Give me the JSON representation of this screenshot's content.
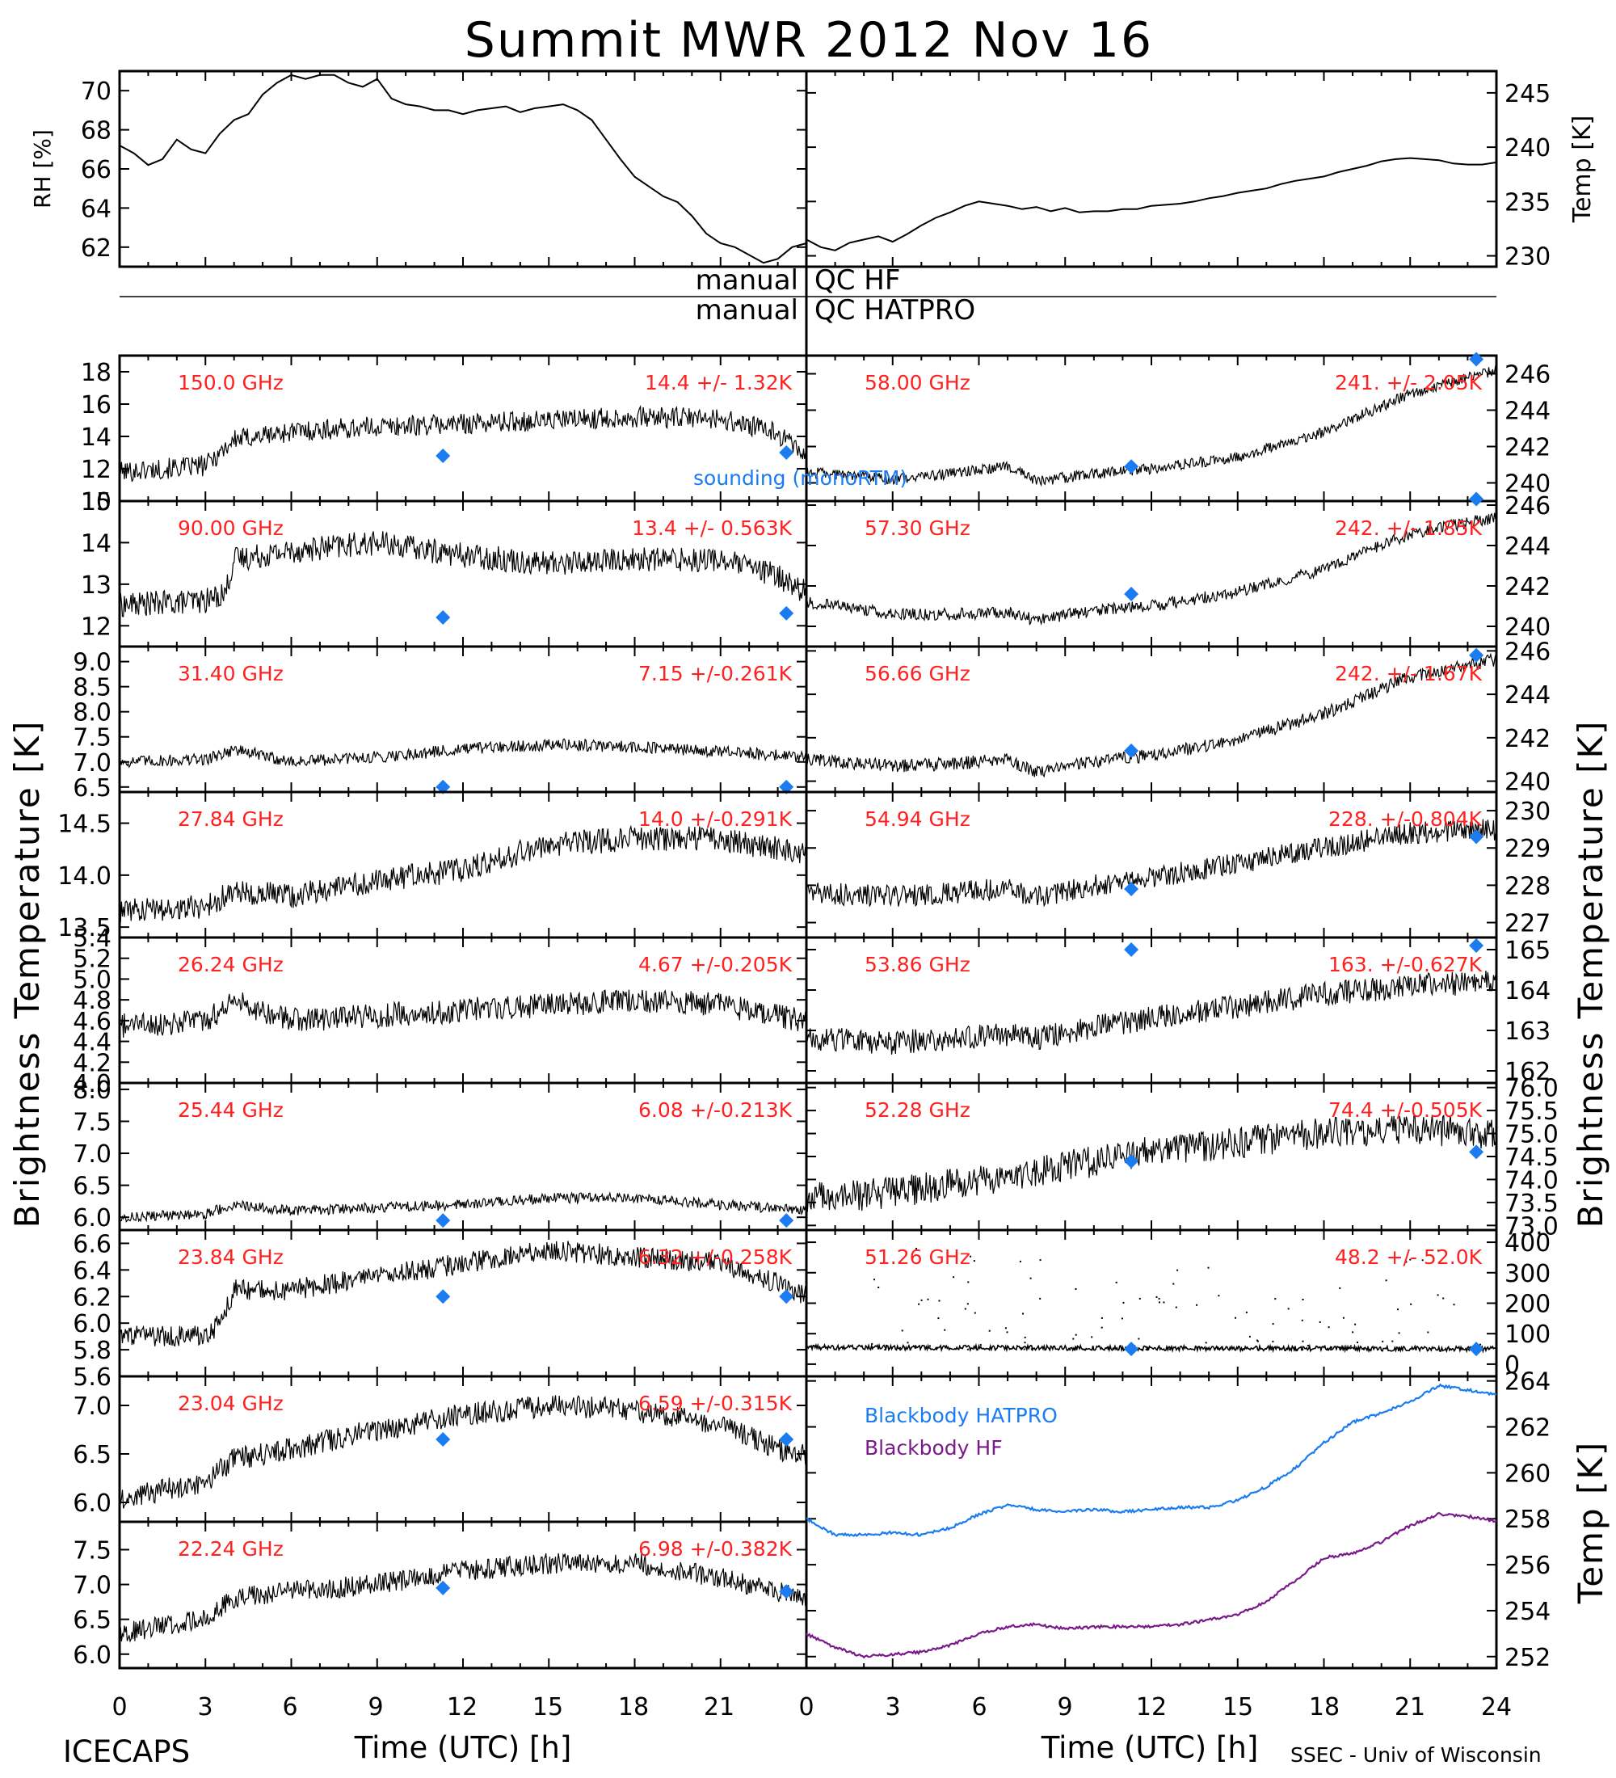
{
  "title": "Summit MWR 2012 Nov 16",
  "footer_left": "ICECAPS",
  "footer_right": "SSEC - Univ of Wisconsin",
  "xlabel": "Time (UTC) [h]",
  "x_ticks": [
    "0",
    "3",
    "6",
    "9",
    "12",
    "15",
    "18",
    "21",
    "24"
  ],
  "ylabel_left": "Brightness Temperature [K]",
  "ylabel_right": "Brightness Temperature [K]",
  "qc_lines": [
    {
      "left": "manual",
      "right": "QC HF"
    },
    {
      "left": "manual",
      "right": "QC HATPRO"
    }
  ],
  "sounding_label": "sounding (monoRTM)",
  "colors": {
    "channel_text": "#ff2020",
    "sounding_marker": "#1a7cf0",
    "bb_hatpro": "#1a7cf0",
    "bb_hf": "#7a1a8a"
  },
  "chart_data": [
    {
      "type": "line",
      "panel": "rh",
      "ylabel": "RH [%]",
      "ylim": [
        61,
        71
      ],
      "yticks": [
        62,
        64,
        66,
        68,
        70
      ],
      "x": [
        0,
        0.5,
        1,
        1.5,
        2,
        2.5,
        3,
        3.5,
        4,
        4.5,
        5,
        5.5,
        6,
        6.5,
        7,
        7.5,
        8,
        8.5,
        9,
        9.5,
        10,
        10.5,
        11,
        11.5,
        12,
        12.5,
        13,
        13.5,
        14,
        14.5,
        15,
        15.5,
        16,
        16.5,
        17,
        17.5,
        18,
        18.5,
        19,
        19.5,
        20,
        20.5,
        21,
        21.5,
        22,
        22.5,
        23,
        23.5,
        24
      ],
      "values": [
        67.2,
        66.8,
        66.2,
        66.5,
        67.5,
        67.0,
        66.8,
        67.8,
        68.5,
        68.8,
        69.8,
        70.4,
        70.8,
        70.6,
        70.8,
        70.8,
        70.4,
        70.2,
        70.6,
        69.6,
        69.3,
        69.2,
        69.0,
        69.0,
        68.8,
        69.0,
        69.1,
        69.2,
        68.9,
        69.1,
        69.2,
        69.3,
        69.0,
        68.5,
        67.5,
        66.5,
        65.6,
        65.1,
        64.6,
        64.3,
        63.6,
        62.7,
        62.2,
        62.0,
        61.6,
        61.2,
        61.4,
        62.0,
        62.2
      ]
    },
    {
      "type": "line",
      "panel": "temp",
      "ylabel": "Temp [K]",
      "ylim": [
        229,
        247
      ],
      "yticks": [
        230,
        235,
        240,
        245
      ],
      "x": [
        0,
        0.5,
        1,
        1.5,
        2,
        2.5,
        3,
        3.5,
        4,
        4.5,
        5,
        5.5,
        6,
        6.5,
        7,
        7.5,
        8,
        8.5,
        9,
        9.5,
        10,
        10.5,
        11,
        11.5,
        12,
        12.5,
        13,
        13.5,
        14,
        14.5,
        15,
        15.5,
        16,
        16.5,
        17,
        17.5,
        18,
        18.5,
        19,
        19.5,
        20,
        20.5,
        21,
        21.5,
        22,
        22.5,
        23,
        23.5,
        24
      ],
      "values": [
        231.5,
        230.8,
        230.5,
        231.2,
        231.5,
        231.8,
        231.3,
        232.0,
        232.8,
        233.5,
        234.0,
        234.6,
        235.0,
        234.8,
        234.6,
        234.3,
        234.5,
        234.1,
        234.4,
        234.0,
        234.1,
        234.1,
        234.3,
        234.3,
        234.6,
        234.7,
        234.8,
        235.0,
        235.3,
        235.5,
        235.8,
        236.0,
        236.2,
        236.6,
        236.9,
        237.1,
        237.3,
        237.7,
        238.0,
        238.3,
        238.7,
        238.9,
        239.0,
        238.9,
        238.8,
        238.5,
        238.4,
        238.4,
        238.6
      ]
    },
    {
      "type": "line",
      "panel": "left-1",
      "channel": "150.0 GHz",
      "stat": "14.4 +/- 1.32K",
      "ylim": [
        10,
        19
      ],
      "yticks": [
        10,
        12,
        14,
        16,
        18
      ],
      "x": [
        0,
        3,
        4,
        6,
        9,
        12,
        15,
        18,
        21,
        23,
        24
      ],
      "values": [
        11.8,
        12.2,
        13.8,
        14.3,
        14.6,
        14.8,
        15.0,
        15.2,
        15.1,
        14.2,
        12.8
      ],
      "noise": 0.65,
      "sounding": [
        [
          11.3,
          12.8
        ],
        [
          23.3,
          13.0
        ]
      ]
    },
    {
      "type": "line",
      "panel": "left-2",
      "channel": "90.00 GHz",
      "stat": "13.4 +/- 0.563K",
      "ylim": [
        11.5,
        15
      ],
      "yticks": [
        12,
        13,
        14,
        15
      ],
      "x": [
        0,
        3,
        3.7,
        4,
        6,
        9,
        12,
        15,
        18,
        21,
        23,
        24
      ],
      "values": [
        12.5,
        12.6,
        12.8,
        13.6,
        13.8,
        14.0,
        13.7,
        13.5,
        13.6,
        13.6,
        13.2,
        12.8
      ],
      "noise": 0.3,
      "sounding": [
        [
          11.3,
          12.2
        ],
        [
          23.3,
          12.3
        ]
      ]
    },
    {
      "type": "line",
      "panel": "left-3",
      "channel": "31.40 GHz",
      "stat": "7.15 +/-0.261K",
      "ylim": [
        6.4,
        9.3
      ],
      "yticks": [
        6.5,
        7.0,
        7.5,
        8.0,
        8.5,
        9.0
      ],
      "x": [
        0,
        3,
        4,
        6,
        9,
        12,
        15,
        18,
        21,
        24
      ],
      "values": [
        7.0,
        7.05,
        7.25,
        7.0,
        7.1,
        7.25,
        7.35,
        7.3,
        7.2,
        7.1
      ],
      "noise": 0.12,
      "sounding": [
        [
          11.3,
          6.5
        ],
        [
          23.3,
          6.5
        ]
      ]
    },
    {
      "type": "line",
      "panel": "left-4",
      "channel": "27.84 GHz",
      "stat": "14.0 +/-0.291K",
      "ylim": [
        13.4,
        14.8
      ],
      "yticks": [
        13.5,
        14.0,
        14.5
      ],
      "x": [
        0,
        3,
        4,
        6,
        9,
        12,
        15,
        18,
        21,
        24
      ],
      "values": [
        13.65,
        13.7,
        13.85,
        13.8,
        13.95,
        14.05,
        14.3,
        14.35,
        14.35,
        14.2
      ],
      "noise": 0.12,
      "sounding": []
    },
    {
      "type": "line",
      "panel": "left-5",
      "channel": "26.24 GHz",
      "stat": "4.67 +/-0.205K",
      "ylim": [
        4.0,
        5.4
      ],
      "yticks": [
        4.0,
        4.2,
        4.4,
        4.6,
        4.8,
        5.0,
        5.2,
        5.4
      ],
      "x": [
        0,
        3,
        4,
        6,
        9,
        12,
        15,
        18,
        21,
        24
      ],
      "values": [
        4.55,
        4.6,
        4.8,
        4.6,
        4.65,
        4.7,
        4.75,
        4.8,
        4.75,
        4.6
      ],
      "noise": 0.12,
      "sounding": []
    },
    {
      "type": "line",
      "panel": "left-6",
      "channel": "25.44 GHz",
      "stat": "6.08 +/-0.213K",
      "ylim": [
        5.8,
        8.1
      ],
      "yticks": [
        6.0,
        6.5,
        7.0,
        7.5,
        8.0
      ],
      "x": [
        0,
        3,
        4,
        6,
        9,
        12,
        15,
        18,
        21,
        24
      ],
      "values": [
        6.0,
        6.05,
        6.2,
        6.1,
        6.15,
        6.2,
        6.3,
        6.3,
        6.2,
        6.1
      ],
      "noise": 0.08,
      "sounding": [
        [
          11.3,
          5.95
        ],
        [
          23.3,
          5.95
        ]
      ]
    },
    {
      "type": "line",
      "panel": "left-7",
      "channel": "23.84 GHz",
      "stat": "6.32 +/-0.258K",
      "ylim": [
        5.6,
        6.7
      ],
      "yticks": [
        5.6,
        5.8,
        6.0,
        6.2,
        6.4,
        6.6
      ],
      "x": [
        0,
        3,
        3.5,
        4,
        6,
        9,
        12,
        15,
        18,
        21,
        23,
        24
      ],
      "values": [
        5.9,
        5.9,
        6.0,
        6.25,
        6.25,
        6.35,
        6.45,
        6.55,
        6.5,
        6.45,
        6.3,
        6.2
      ],
      "noise": 0.08,
      "sounding": [
        [
          11.3,
          6.2
        ],
        [
          23.3,
          6.2
        ]
      ]
    },
    {
      "type": "line",
      "panel": "left-8",
      "channel": "23.04 GHz",
      "stat": "6.59 +/-0.315K",
      "ylim": [
        5.8,
        7.3
      ],
      "yticks": [
        6.0,
        6.5,
        7.0
      ],
      "x": [
        0,
        3,
        4,
        6,
        9,
        12,
        15,
        18,
        21,
        23,
        24
      ],
      "values": [
        6.05,
        6.2,
        6.45,
        6.55,
        6.75,
        6.9,
        7.0,
        6.95,
        6.8,
        6.55,
        6.5
      ],
      "noise": 0.12,
      "sounding": [
        [
          11.3,
          6.65
        ],
        [
          23.3,
          6.65
        ]
      ]
    },
    {
      "type": "line",
      "panel": "left-9",
      "channel": "22.24 GHz",
      "stat": "6.98 +/-0.382K",
      "ylim": [
        5.8,
        7.9
      ],
      "yticks": [
        6.0,
        6.5,
        7.0,
        7.5
      ],
      "x": [
        0,
        3,
        4,
        6,
        9,
        12,
        15,
        18,
        21,
        23,
        24
      ],
      "values": [
        6.3,
        6.5,
        6.8,
        6.9,
        7.0,
        7.2,
        7.3,
        7.3,
        7.1,
        6.9,
        6.8
      ],
      "noise": 0.15,
      "sounding": [
        [
          11.3,
          6.95
        ],
        [
          23.3,
          6.9
        ]
      ]
    },
    {
      "type": "line",
      "panel": "right-1",
      "channel": "58.00 GHz",
      "stat": "241. +/- 2.05K",
      "ylim": [
        239,
        247
      ],
      "yticks": [
        240,
        242,
        244,
        246
      ],
      "x": [
        0,
        3,
        5,
        7,
        8,
        10,
        12,
        15,
        18,
        21,
        24
      ],
      "values": [
        240.6,
        240.2,
        240.5,
        240.9,
        240.1,
        240.5,
        240.8,
        241.4,
        242.8,
        244.9,
        246.2
      ],
      "noise": 0.3,
      "sounding": [
        [
          11.3,
          240.9
        ],
        [
          23.3,
          246.8
        ]
      ]
    },
    {
      "type": "line",
      "panel": "right-2",
      "channel": "57.30 GHz",
      "stat": "242. +/- 1.85K",
      "ylim": [
        239,
        246.2
      ],
      "yticks": [
        240,
        242,
        244,
        246
      ],
      "x": [
        0,
        3,
        5,
        7,
        8,
        10,
        12,
        15,
        18,
        21,
        24
      ],
      "values": [
        241.2,
        240.6,
        240.6,
        240.7,
        240.3,
        240.8,
        241.0,
        241.7,
        242.8,
        244.6,
        245.4
      ],
      "noise": 0.3,
      "sounding": [
        [
          11.3,
          241.6
        ],
        [
          23.3,
          246.3
        ]
      ]
    },
    {
      "type": "line",
      "panel": "right-3",
      "channel": "56.66 GHz",
      "stat": "242. +/- 1.67K",
      "ylim": [
        239.5,
        246.2
      ],
      "yticks": [
        240,
        242,
        244,
        246
      ],
      "x": [
        0,
        3,
        5,
        7,
        8,
        10,
        12,
        15,
        18,
        21,
        24
      ],
      "values": [
        241.0,
        240.7,
        240.8,
        241.0,
        240.4,
        240.9,
        241.2,
        241.9,
        243.1,
        244.8,
        245.6
      ],
      "noise": 0.3,
      "sounding": [
        [
          11.3,
          241.4
        ],
        [
          23.3,
          245.8
        ]
      ]
    },
    {
      "type": "line",
      "panel": "right-4",
      "channel": "54.94 GHz",
      "stat": "228. +/-0.804K",
      "ylim": [
        226.6,
        230.5
      ],
      "yticks": [
        227,
        228,
        229,
        230
      ],
      "x": [
        0,
        3,
        5,
        7,
        8,
        10,
        12,
        15,
        18,
        21,
        24
      ],
      "values": [
        227.8,
        227.7,
        227.8,
        227.9,
        227.7,
        228.0,
        228.2,
        228.6,
        229.0,
        229.4,
        229.5
      ],
      "noise": 0.3,
      "sounding": [
        [
          11.3,
          227.9
        ],
        [
          23.3,
          229.3
        ]
      ]
    },
    {
      "type": "line",
      "panel": "right-5",
      "channel": "53.86 GHz",
      "stat": "163. +/-0.627K",
      "ylim": [
        161.7,
        165.3
      ],
      "yticks": [
        162,
        163,
        164,
        165
      ],
      "x": [
        0,
        3,
        5,
        7,
        8,
        10,
        12,
        15,
        18,
        21,
        24
      ],
      "values": [
        162.8,
        162.7,
        162.8,
        162.9,
        162.8,
        163.1,
        163.3,
        163.6,
        163.9,
        164.1,
        164.2
      ],
      "noise": 0.3,
      "sounding": [
        [
          11.3,
          165.0
        ],
        [
          23.3,
          165.1
        ]
      ]
    },
    {
      "type": "line",
      "panel": "right-6",
      "channel": "52.28 GHz",
      "stat": "74.4 +/-0.505K",
      "ylim": [
        72.9,
        76.1
      ],
      "yticks": [
        73.0,
        73.5,
        74.0,
        74.5,
        75.0,
        75.5,
        76.0
      ],
      "x": [
        0,
        3,
        5,
        7,
        8,
        10,
        12,
        15,
        18,
        21,
        24
      ],
      "values": [
        73.6,
        73.7,
        73.9,
        74.0,
        74.2,
        74.4,
        74.6,
        74.8,
        75.0,
        75.1,
        75.0
      ],
      "noise": 0.35,
      "sounding": [
        [
          11.3,
          74.4
        ],
        [
          23.3,
          74.6
        ]
      ]
    },
    {
      "type": "scatter",
      "panel": "right-7",
      "channel": "51.26 GHz",
      "stat": "48.2 +/- 52.0K",
      "ylim": [
        -40,
        440
      ],
      "yticks": [
        0,
        100,
        200,
        300,
        400
      ],
      "x": [
        0,
        24
      ],
      "values": [
        55,
        50
      ],
      "noise": 8,
      "sounding": [
        [
          11.3,
          50
        ],
        [
          23.3,
          50
        ]
      ]
    },
    {
      "type": "line",
      "panel": "blackbody",
      "ylabel": "Temp [K]",
      "ylim": [
        251.5,
        264.2
      ],
      "yticks": [
        252,
        254,
        256,
        258,
        260,
        262,
        264
      ],
      "series": [
        {
          "name": "Blackbody HATPRO",
          "x": [
            0,
            1,
            2,
            3,
            4,
            5,
            6,
            7,
            8,
            9,
            10,
            11,
            12,
            13,
            14,
            15,
            16,
            17,
            18,
            19,
            20,
            21,
            22,
            23,
            24
          ],
          "values": [
            258.0,
            257.3,
            257.3,
            257.4,
            257.3,
            257.6,
            258.2,
            258.6,
            258.4,
            258.3,
            258.4,
            258.3,
            258.4,
            258.5,
            258.5,
            258.8,
            259.4,
            260.2,
            261.3,
            262.2,
            262.6,
            263.1,
            263.8,
            263.6,
            263.4
          ]
        },
        {
          "name": "Blackbody HF",
          "x": [
            0,
            1,
            2,
            3,
            4,
            5,
            6,
            7,
            8,
            9,
            10,
            11,
            12,
            13,
            14,
            15,
            16,
            17,
            18,
            19,
            20,
            21,
            22,
            23,
            24
          ],
          "values": [
            253.0,
            252.4,
            252.0,
            252.1,
            252.2,
            252.5,
            253.0,
            253.3,
            253.4,
            253.2,
            253.3,
            253.3,
            253.3,
            253.4,
            253.6,
            253.8,
            254.4,
            255.3,
            256.3,
            256.5,
            257.0,
            257.7,
            258.2,
            258.1,
            257.9
          ]
        }
      ]
    }
  ]
}
